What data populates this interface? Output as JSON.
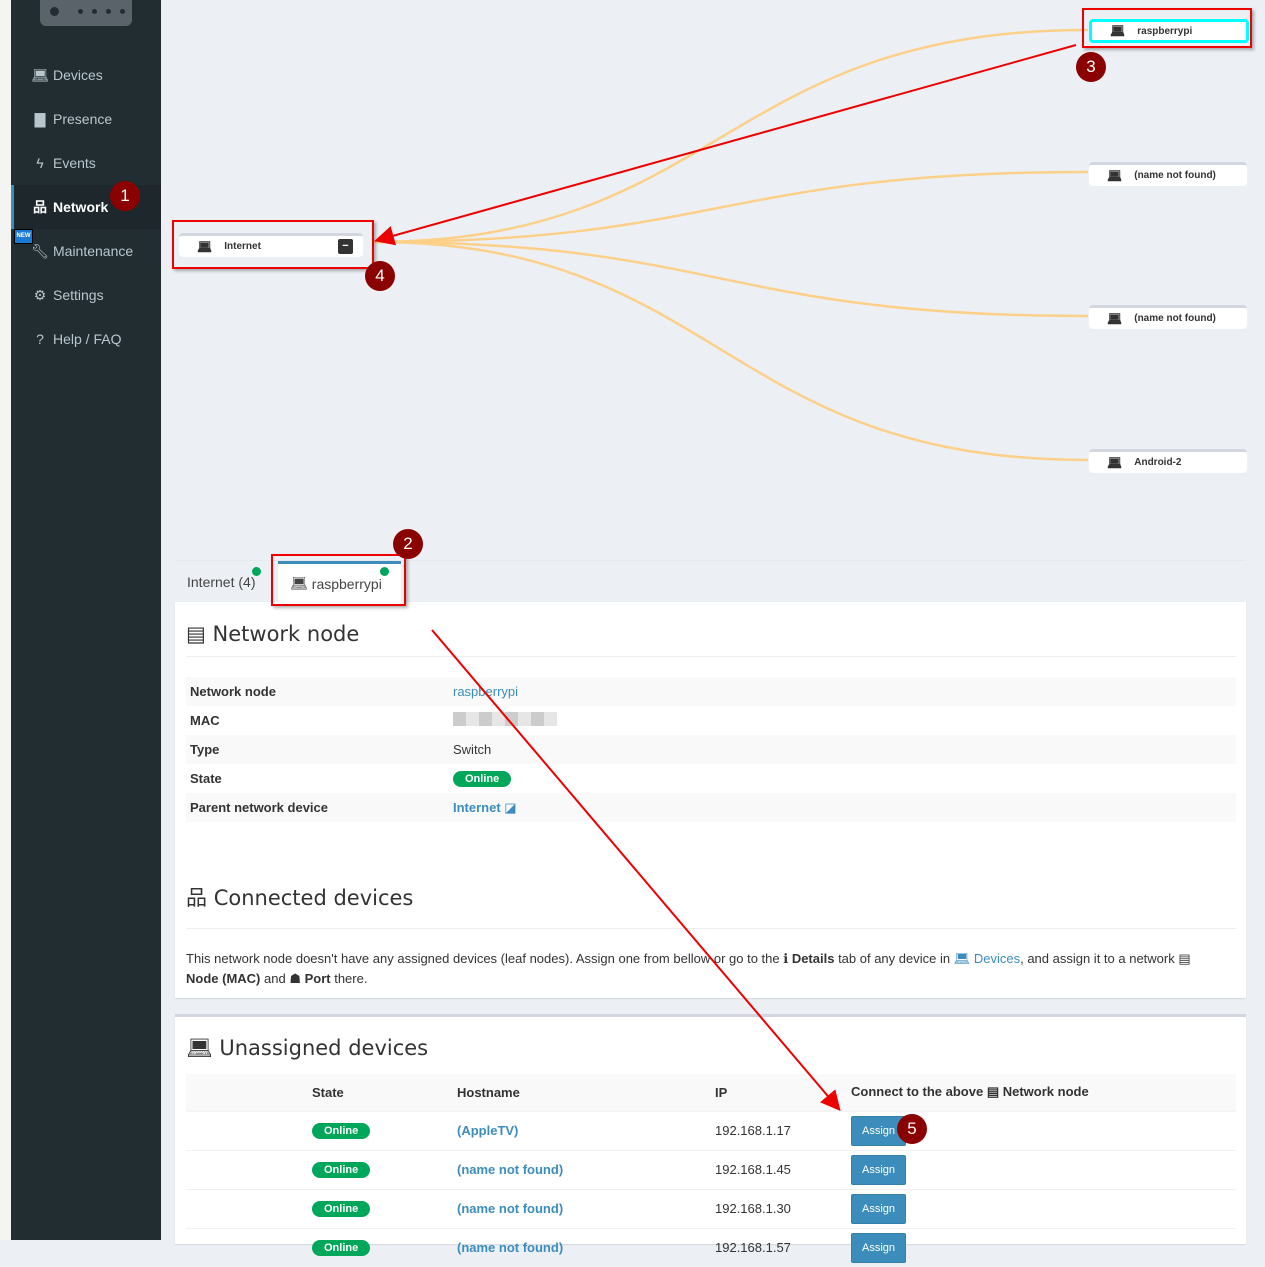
{
  "sidebar": {
    "items": [
      {
        "label": "Devices",
        "icon": "laptop-icon"
      },
      {
        "label": "Presence",
        "icon": "calendar-icon"
      },
      {
        "label": "Events",
        "icon": "bolt-icon"
      },
      {
        "label": "Network",
        "icon": "sitemap-icon",
        "active": true
      },
      {
        "label": "Maintenance",
        "icon": "wrench-icon",
        "badge": "NEW"
      },
      {
        "label": "Settings",
        "icon": "gear-icon"
      },
      {
        "label": "Help / FAQ",
        "icon": "question-icon"
      }
    ]
  },
  "graph": {
    "root": {
      "label": "Internet",
      "collapse": "−"
    },
    "children": [
      {
        "label": "raspberrypi"
      },
      {
        "label": "(name not found)"
      },
      {
        "label": "(name not found)"
      },
      {
        "label": "Android-2"
      }
    ],
    "link_color": "#fdd08a"
  },
  "annotations": [
    "1",
    "2",
    "3",
    "4",
    "5"
  ],
  "tabs": [
    {
      "label": "Internet (4)"
    },
    {
      "label": "raspberrypi",
      "active": true
    }
  ],
  "node_section": {
    "title": "Network node",
    "rows": [
      {
        "k": "Network node",
        "v": "raspberrypi"
      },
      {
        "k": "MAC",
        "v": ""
      },
      {
        "k": "Type",
        "v": "Switch"
      },
      {
        "k": "State",
        "v": "Online"
      },
      {
        "k": "Parent network device",
        "v": "Internet"
      }
    ]
  },
  "connected": {
    "title": "Connected devices",
    "t1": "This network node doesn't have any assigned devices (leaf nodes). Assign one from bellow or go to the ",
    "b1": "Details",
    "t2": " tab of any device in ",
    "link": "Devices",
    "t3": ", and assign it to a network ",
    "b2": "Node (MAC)",
    "t4": " and ",
    "b3": "Port",
    "t5": " there."
  },
  "unassigned": {
    "title": "Unassigned devices",
    "headers": {
      "state": "State",
      "hostname": "Hostname",
      "ip": "IP",
      "connect": "Connect to the above",
      "connect2": "Network node"
    },
    "rows": [
      {
        "state": "Online",
        "hostname": "(AppleTV)",
        "ip": "192.168.1.17",
        "action": "Assign"
      },
      {
        "state": "Online",
        "hostname": "(name not found)",
        "ip": "192.168.1.45",
        "action": "Assign"
      },
      {
        "state": "Online",
        "hostname": "(name not found)",
        "ip": "192.168.1.30",
        "action": "Assign"
      },
      {
        "state": "Online",
        "hostname": "(name not found)",
        "ip": "192.168.1.57",
        "action": "Assign"
      }
    ]
  }
}
